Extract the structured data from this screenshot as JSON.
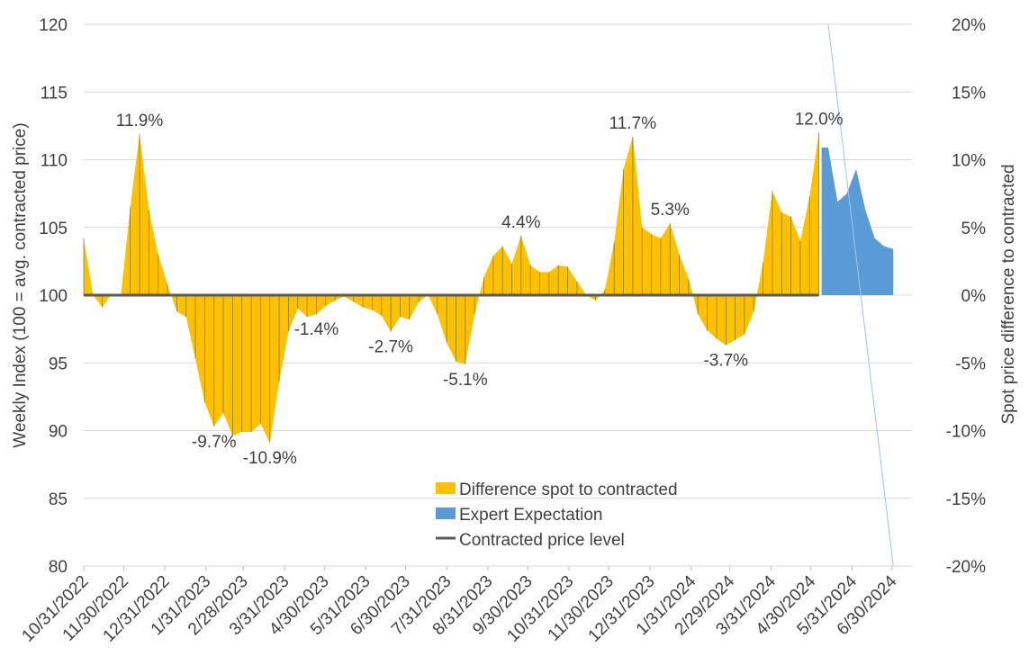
{
  "chart_data": {
    "type": "area",
    "left_axis_title": "Weekly Index (100 = avg. contracted price)",
    "right_axis_title": "Spot price difference to contracted",
    "left_ylim": [
      80,
      120
    ],
    "left_ticks": [
      "80",
      "85",
      "90",
      "95",
      "100",
      "105",
      "110",
      "115",
      "120"
    ],
    "right_ylim": [
      -20,
      20
    ],
    "right_ticks": [
      "-20%",
      "-15%",
      "-10%",
      "-5%",
      "0%",
      "5%",
      "10%",
      "15%",
      "20%"
    ],
    "x_start_day": 0,
    "x_end_day": 623,
    "x_ticks": [
      {
        "day": 0,
        "label": "10/31/2022"
      },
      {
        "day": 30,
        "label": "11/30/2022"
      },
      {
        "day": 61,
        "label": "12/31/2022"
      },
      {
        "day": 92,
        "label": "1/31/2023"
      },
      {
        "day": 120,
        "label": "2/28/2023"
      },
      {
        "day": 151,
        "label": "3/31/2023"
      },
      {
        "day": 181,
        "label": "4/30/2023"
      },
      {
        "day": 212,
        "label": "5/31/2023"
      },
      {
        "day": 242,
        "label": "6/30/2023"
      },
      {
        "day": 273,
        "label": "7/31/2023"
      },
      {
        "day": 304,
        "label": "8/31/2023"
      },
      {
        "day": 334,
        "label": "9/30/2023"
      },
      {
        "day": 365,
        "label": "10/31/2023"
      },
      {
        "day": 395,
        "label": "11/30/2023"
      },
      {
        "day": 426,
        "label": "12/31/2023"
      },
      {
        "day": 457,
        "label": "1/31/2024"
      },
      {
        "day": 486,
        "label": "2/29/2024"
      },
      {
        "day": 517,
        "label": "3/31/2024"
      },
      {
        "day": 547,
        "label": "4/30/2024"
      },
      {
        "day": 578,
        "label": "5/31/2024"
      },
      {
        "day": 608,
        "label": "6/30/2024"
      }
    ],
    "series": [
      {
        "name": "Difference spot to contracted",
        "color": "#FFC000",
        "x_days": [
          0,
          7,
          14,
          21,
          28,
          35,
          42,
          49,
          56,
          63,
          70,
          77,
          84,
          91,
          98,
          105,
          112,
          119,
          126,
          133,
          140,
          147,
          154,
          161,
          168,
          175,
          182,
          189,
          196,
          203,
          210,
          217,
          224,
          231,
          238,
          245,
          252,
          259,
          266,
          273,
          280,
          287,
          294,
          301,
          308,
          315,
          322,
          329,
          336,
          343,
          350,
          357,
          364,
          371,
          378,
          385,
          392,
          399,
          406,
          413,
          420,
          427,
          434,
          441,
          448,
          455,
          462,
          469,
          476,
          483,
          490,
          497,
          504,
          511,
          518,
          525,
          532,
          539,
          546,
          553
        ],
        "values": [
          4.2,
          0.0,
          -0.9,
          0.1,
          0.0,
          6.5,
          11.9,
          6.3,
          3.0,
          0.8,
          -1.2,
          -1.6,
          -4.7,
          -7.9,
          -9.7,
          -8.7,
          -10.4,
          -10.1,
          -10.1,
          -9.5,
          -10.9,
          -6.4,
          -2.7,
          -1.0,
          -1.6,
          -1.4,
          -0.8,
          -0.4,
          -0.1,
          -0.5,
          -0.9,
          -1.1,
          -1.5,
          -2.7,
          -1.6,
          -1.8,
          -0.5,
          0.0,
          -1.4,
          -3.5,
          -4.9,
          -5.1,
          -1.4,
          1.3,
          2.9,
          3.6,
          2.3,
          4.4,
          2.2,
          1.7,
          1.7,
          2.2,
          2.1,
          1.0,
          0.0,
          -0.4,
          0.4,
          3.9,
          9.3,
          11.7,
          5.0,
          4.5,
          4.2,
          5.3,
          3.0,
          1.2,
          -1.4,
          -2.6,
          -3.2,
          -3.7,
          -3.3,
          -2.9,
          -1.2,
          2.4,
          7.7,
          6.1,
          5.8,
          4.0,
          7.3,
          12.0
        ]
      },
      {
        "name": "Expert Expectation",
        "color": "#5B9BD5",
        "x_days": [
          555,
          560,
          567,
          574,
          581,
          588,
          595,
          602,
          609
        ],
        "values": [
          10.9,
          10.9,
          6.9,
          7.5,
          9.3,
          6.3,
          4.2,
          3.6,
          3.4
        ]
      }
    ],
    "contracted_series": {
      "name": "Contracted price level",
      "color": "#595959",
      "start_day": 0,
      "end_day": 553,
      "value": 0
    },
    "forecast_line": {
      "start_day": 560,
      "end_day": 609,
      "top": 20,
      "bottom": -20
    },
    "annotations": [
      {
        "text": "11.9%",
        "day": 42,
        "value": 11.9
      },
      {
        "text": "-9.7%",
        "day": 98,
        "value": -9.7
      },
      {
        "text": "-10.9%",
        "day": 140,
        "value": -10.9
      },
      {
        "text": "-1.4%",
        "day": 175,
        "value": -1.4
      },
      {
        "text": "-2.7%",
        "day": 231,
        "value": -2.7
      },
      {
        "text": "-5.1%",
        "day": 287,
        "value": -5.1
      },
      {
        "text": "4.4%",
        "day": 329,
        "value": 4.4
      },
      {
        "text": "11.7%",
        "day": 413,
        "value": 11.7
      },
      {
        "text": "5.3%",
        "day": 441,
        "value": 5.3
      },
      {
        "text": "-3.7%",
        "day": 483,
        "value": -3.7
      },
      {
        "text": "12.0%",
        "day": 553,
        "value": 12.0
      }
    ],
    "legend": {
      "position": "bottom-center",
      "items": [
        {
          "label": "Difference spot to contracted",
          "color": "#FFC000",
          "kind": "box"
        },
        {
          "label": "Expert Expectation",
          "color": "#5B9BD5",
          "kind": "box"
        },
        {
          "label": "Contracted price level",
          "color": "#595959",
          "kind": "line"
        }
      ]
    },
    "grid": true
  }
}
